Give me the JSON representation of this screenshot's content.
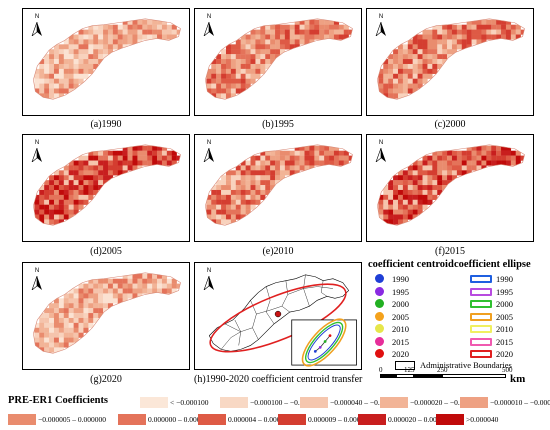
{
  "north_label": "N",
  "panels": [
    {
      "caption": "(a)1990",
      "palette": "low"
    },
    {
      "caption": "(b)1995",
      "palette": "mid"
    },
    {
      "caption": "(c)2000",
      "palette": "mid"
    },
    {
      "caption": "(d)2005",
      "palette": "high"
    },
    {
      "caption": "(e)2010",
      "palette": "mid"
    },
    {
      "caption": "(f)2015",
      "palette": "high"
    },
    {
      "caption": "(g)2020",
      "palette": "low"
    },
    {
      "caption": "(h)1990-2020 coefficient centroid transfer"
    }
  ],
  "centroid_legend": {
    "title": "coefficient  centroid",
    "items": [
      {
        "year": "1990",
        "color": "#1f3fd6"
      },
      {
        "year": "1995",
        "color": "#8a2be2"
      },
      {
        "year": "2000",
        "color": "#22b022"
      },
      {
        "year": "2005",
        "color": "#f4a21c"
      },
      {
        "year": "2010",
        "color": "#e6e64a"
      },
      {
        "year": "2015",
        "color": "#e62e9a"
      },
      {
        "year": "2020",
        "color": "#e01010"
      }
    ]
  },
  "ellipse_legend": {
    "title": "coefficient ellipse",
    "items": [
      {
        "year": "1990",
        "color": "#1f5fe0"
      },
      {
        "year": "1995",
        "color": "#b84be0"
      },
      {
        "year": "2000",
        "color": "#30c030"
      },
      {
        "year": "2005",
        "color": "#f0a020"
      },
      {
        "year": "2010",
        "color": "#f0f060"
      },
      {
        "year": "2015",
        "color": "#f05ab0"
      },
      {
        "year": "2020",
        "color": "#e02020"
      }
    ]
  },
  "boundary_label": "Administrative Boundaries",
  "scale_bar": {
    "ticks": [
      "0",
      "125",
      "250",
      "500"
    ],
    "unit": "km"
  },
  "coefficients_legend": {
    "title": "PRE-ER1 Coefficients",
    "items": [
      {
        "label": "< −0.000100",
        "color": "#fbe7d8"
      },
      {
        "label": "−0.000100 – −0.000040",
        "color": "#f8d8c4"
      },
      {
        "label": "−0.000040 – −0.000020",
        "color": "#f5c6ae"
      },
      {
        "label": "−0.000020 – −0.000010",
        "color": "#f2b497"
      },
      {
        "label": "−0.000010 – −0.000005",
        "color": "#eea183"
      },
      {
        "label": "−0.000005 – 0.000000",
        "color": "#e98c6e"
      },
      {
        "label": "0.000000 – 0.000004",
        "color": "#e4735a"
      },
      {
        "label": "0.000004 – 0.000009",
        "color": "#de5a45"
      },
      {
        "label": "0.000009 – 0.000020",
        "color": "#d43d30"
      },
      {
        "label": "0.000020 – 0.000040",
        "color": "#c81e1e"
      },
      {
        "label": ">0.000040",
        "color": "#c00a0a"
      }
    ]
  }
}
